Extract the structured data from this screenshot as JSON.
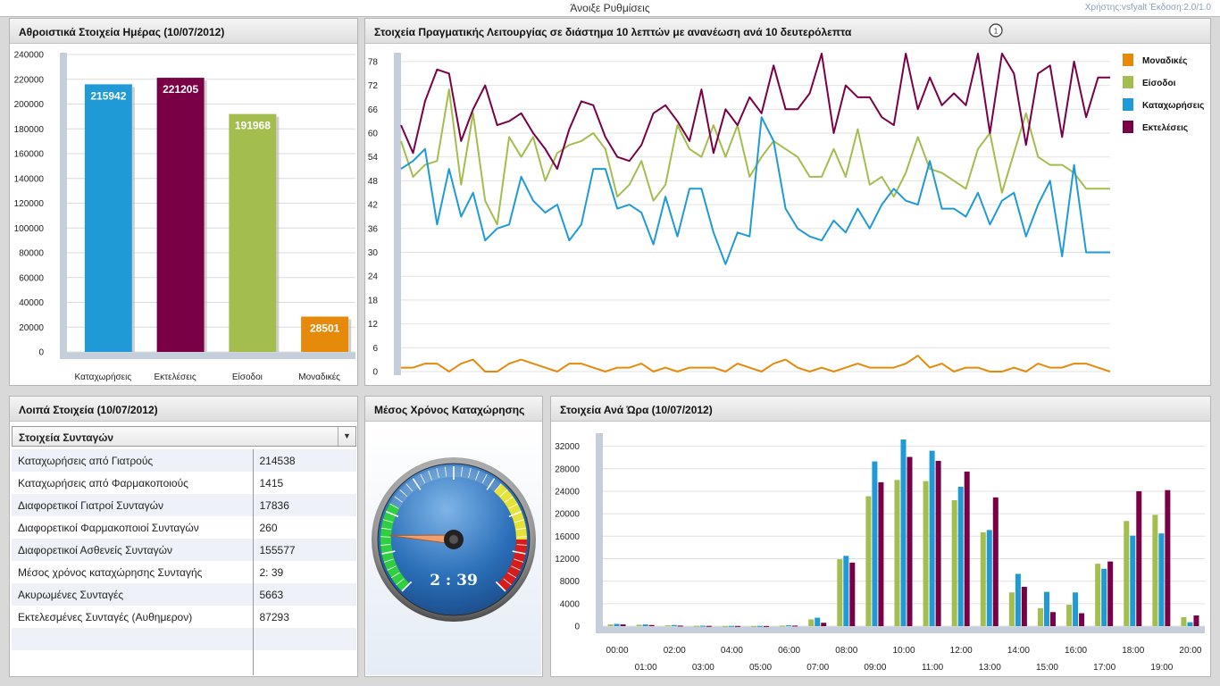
{
  "topbar": {
    "settings_label": "Άνοιξε Ρυθμίσεις",
    "user_info": "Χρήστης:vsfyalt  Έκδοση:2.0/1.0"
  },
  "totals_panel": {
    "title": "Αθροιστικά Στοιχεία Ημέρας (10/07/2012)"
  },
  "realtime_panel": {
    "title": "Στοιχεία Πραγματικής Λειτουργίας σε διάστημα 10 λεπτών με ανανέωση ανά 10 δευτερόλεπτα",
    "info_icon": "clock-info-icon",
    "info_glyph": "1"
  },
  "other_panel": {
    "title": "Λοιπά Στοιχεία (10/07/2012)",
    "dropdown_value": "Στοιχεία Συνταγών",
    "rows": [
      {
        "label": "Καταχωρήσεις από Γιατρούς",
        "value": "214538"
      },
      {
        "label": "Καταχωρήσεις από Φαρμακοποιούς",
        "value": "1415"
      },
      {
        "label": "Διαφορετικοί Γιατροί Συνταγών",
        "value": "17836"
      },
      {
        "label": "Διαφορετικοί Φαρμακοποιοί Συνταγών",
        "value": "260"
      },
      {
        "label": "Διαφορετικοί Ασθενείς Συνταγών",
        "value": "155577"
      },
      {
        "label": "Μέσος χρόνος καταχώρησης Συνταγής",
        "value": "2: 39"
      },
      {
        "label": "Ακυρωμένες Συνταγές",
        "value": "5663"
      },
      {
        "label": "Εκτελεσμένες Συνταγές (Αυθημερον)",
        "value": "87293"
      }
    ]
  },
  "gauge_panel": {
    "title": "Μέσος Χρόνος Καταχώρησης",
    "readout": "2 : 39",
    "needle_fraction": 0.18
  },
  "hourly_panel": {
    "title": "Στοιχεία Ανά Ώρα (10/07/2012)"
  },
  "colors": {
    "registrations": "#1f9ad6",
    "executions": "#7a0046",
    "logins": "#a3bd4e",
    "uniques": "#e58a0a"
  },
  "chart_data": [
    {
      "type": "bar",
      "title": "Αθροιστικά Στοιχεία Ημέρας (10/07/2012)",
      "categories": [
        "Καταχωρήσεις",
        "Εκτελέσεις",
        "Είσοδοι",
        "Μοναδικές"
      ],
      "values": [
        215942,
        221205,
        191968,
        28501
      ],
      "colors": [
        "#1f9ad6",
        "#7a0046",
        "#a3bd4e",
        "#e58a0a"
      ],
      "ylim": [
        0,
        240000
      ],
      "yticks": [
        0,
        20000,
        40000,
        60000,
        80000,
        100000,
        120000,
        140000,
        160000,
        180000,
        200000,
        220000,
        240000
      ]
    },
    {
      "type": "line",
      "title": "Στοιχεία Πραγματικής Λειτουργίας σε διάστημα 10 λεπτών με ανανέωση ανά 10 δευτερόλεπτα",
      "ylim": [
        0,
        80
      ],
      "yticks": [
        0,
        6,
        12,
        18,
        24,
        30,
        36,
        42,
        48,
        54,
        60,
        66,
        72,
        78
      ],
      "legend_position": "right",
      "series": [
        {
          "name": "Μοναδικές",
          "color": "#e58a0a",
          "values": [
            1,
            1,
            2,
            2,
            0,
            2,
            3,
            0,
            0,
            2,
            3,
            2,
            1,
            0,
            2,
            2,
            1,
            0,
            1,
            1,
            2,
            0,
            1,
            0,
            1,
            1,
            1,
            0,
            2,
            1,
            0,
            2,
            3,
            1,
            0,
            1,
            0,
            1,
            2,
            1,
            1,
            1,
            2,
            4,
            1,
            2,
            0,
            1,
            1,
            0,
            0,
            1,
            0,
            2,
            1,
            1,
            2,
            2,
            1,
            0
          ]
        },
        {
          "name": "Είσοδοι",
          "color": "#a3bd4e",
          "values": [
            58,
            49,
            52,
            53,
            71,
            47,
            65,
            43,
            37,
            59,
            54,
            59,
            48,
            55,
            57,
            58,
            60,
            56,
            44,
            47,
            53,
            43,
            47,
            62,
            56,
            54,
            62,
            54,
            62,
            49,
            54,
            58,
            56,
            54,
            49,
            49,
            56,
            49,
            61,
            47,
            49,
            44,
            50,
            59,
            51,
            50,
            48,
            46,
            56,
            60,
            45,
            55,
            65,
            54,
            52,
            52,
            50,
            46,
            46,
            46
          ]
        },
        {
          "name": "Καταχωρήσεις",
          "color": "#1f9ad6",
          "values": [
            51,
            53,
            56,
            37,
            51,
            39,
            45,
            33,
            36,
            37,
            49,
            43,
            40,
            42,
            33,
            37,
            51,
            51,
            41,
            42,
            40,
            32,
            44,
            34,
            46,
            46,
            35,
            27,
            35,
            34,
            64,
            58,
            41,
            36,
            34,
            33,
            38,
            35,
            41,
            36,
            42,
            46,
            43,
            42,
            53,
            41,
            41,
            39,
            45,
            37,
            43,
            45,
            34,
            42,
            48,
            29,
            52,
            30,
            30,
            30
          ]
        },
        {
          "name": "Εκτελέσεις",
          "color": "#7a0046",
          "values": [
            62,
            55,
            68,
            76,
            75,
            58,
            66,
            72,
            62,
            63,
            65,
            60,
            56,
            51,
            61,
            68,
            67,
            59,
            54,
            53,
            57,
            65,
            67,
            63,
            58,
            71,
            55,
            66,
            62,
            69,
            65,
            77,
            66,
            66,
            70,
            80,
            60,
            72,
            69,
            69,
            64,
            62,
            80,
            66,
            74,
            67,
            70,
            67,
            80,
            60,
            80,
            75,
            57,
            75,
            77,
            59,
            78,
            64,
            74,
            74
          ]
        }
      ]
    },
    {
      "type": "bar",
      "title": "Στοιχεία Ανά Ώρα (10/07/2012)",
      "categories": [
        "00:00",
        "01:00",
        "02:00",
        "03:00",
        "04:00",
        "05:00",
        "06:00",
        "07:00",
        "08:00",
        "09:00",
        "10:00",
        "11:00",
        "12:00",
        "13:00",
        "14:00",
        "15:00",
        "16:00",
        "17:00",
        "18:00",
        "19:00",
        "20:00"
      ],
      "ylim": [
        0,
        34000
      ],
      "yticks": [
        0,
        4000,
        8000,
        12000,
        16000,
        20000,
        24000,
        28000,
        32000
      ],
      "series": [
        {
          "name": "Είσοδοι",
          "color": "#a3bd4e",
          "values": [
            300,
            250,
            150,
            60,
            40,
            30,
            100,
            1200,
            11900,
            23100,
            26000,
            25800,
            22400,
            16700,
            6000,
            3200,
            3800,
            11100,
            18700,
            19800,
            1600
          ]
        },
        {
          "name": "Καταχωρήσεις",
          "color": "#1f9ad6",
          "values": [
            400,
            300,
            200,
            80,
            50,
            40,
            150,
            1500,
            12500,
            29300,
            33200,
            31200,
            24800,
            17100,
            9300,
            6100,
            6000,
            10200,
            16100,
            16500,
            700
          ]
        },
        {
          "name": "Εκτελέσεις",
          "color": "#7a0046",
          "values": [
            300,
            200,
            100,
            50,
            30,
            20,
            100,
            600,
            11300,
            25600,
            30100,
            29400,
            27500,
            22900,
            7000,
            2500,
            2300,
            11500,
            24000,
            24200,
            1900
          ]
        }
      ]
    }
  ]
}
